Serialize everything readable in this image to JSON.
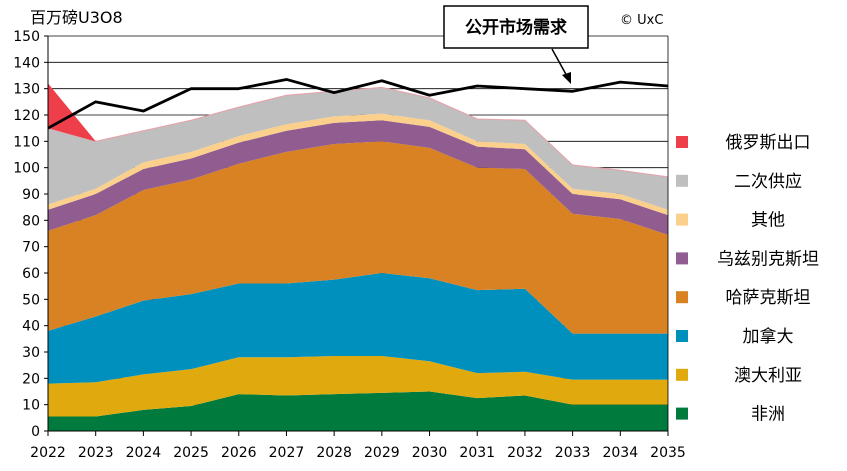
{
  "chart_data": {
    "type": "area",
    "title": "",
    "ylabel": "百万磅U3O8",
    "xlabel": "",
    "copyright": "© UxC",
    "callout": "公开市场需求",
    "ylim": [
      0,
      150
    ],
    "ytick_step": 10,
    "x": [
      2022,
      2023,
      2024,
      2025,
      2026,
      2027,
      2028,
      2029,
      2030,
      2031,
      2032,
      2033,
      2034,
      2035
    ],
    "stack_order": [
      "非洲",
      "澳大利亚",
      "加拿大",
      "哈萨克斯坦",
      "乌兹别克斯坦",
      "其他",
      "二次供应"
    ],
    "series": [
      {
        "name": "非洲",
        "color": "#007a3d",
        "values": [
          5.5,
          5.5,
          8,
          9.5,
          14,
          13.5,
          14,
          14.5,
          15,
          12.5,
          13.5,
          10,
          10,
          10
        ]
      },
      {
        "name": "澳大利亚",
        "color": "#e0aa0f",
        "values": [
          12.5,
          13,
          13.5,
          14,
          14,
          14.5,
          14.5,
          14,
          11.5,
          9.5,
          9,
          9.5,
          9.5,
          9.5
        ]
      },
      {
        "name": "加拿大",
        "color": "#0090be",
        "values": [
          20,
          25,
          28,
          28.5,
          28,
          28,
          29,
          31.5,
          31.5,
          31.5,
          31.5,
          17.5,
          17.5,
          17.5
        ]
      },
      {
        "name": "哈萨克斯坦",
        "color": "#d98224",
        "values": [
          38,
          38.5,
          42,
          43.5,
          45.5,
          50,
          51.5,
          50,
          49.5,
          46.5,
          45.5,
          45.5,
          43.5,
          37.5
        ]
      },
      {
        "name": "乌兹别克斯坦",
        "color": "#915c90",
        "values": [
          8,
          8,
          8,
          8,
          8,
          8,
          8,
          8,
          8,
          8,
          7.5,
          7.5,
          7.5,
          7.5
        ]
      },
      {
        "name": "其他",
        "color": "#fad08c",
        "values": [
          2,
          2,
          2.5,
          2.5,
          2.5,
          2.5,
          2.5,
          2.5,
          2.5,
          2,
          2,
          2,
          2,
          2
        ]
      },
      {
        "name": "二次供应",
        "color": "#bfbfbf",
        "values": [
          29,
          18,
          12,
          12,
          11,
          11,
          9.5,
          10,
          8.5,
          8.5,
          9,
          9,
          9,
          12.5
        ]
      }
    ],
    "russia_exports": {
      "name": "俄罗斯出口",
      "color": "#ee3e4a",
      "values": [
        17,
        0,
        0,
        0,
        0,
        0,
        0,
        0,
        0,
        0,
        0,
        0,
        0,
        0
      ]
    },
    "demand_line": {
      "name": "公开市场需求",
      "color": "#000000",
      "values": [
        115,
        125,
        121.5,
        130,
        130,
        133.5,
        128.5,
        133,
        127.5,
        131,
        130,
        129,
        132.5,
        131
      ]
    },
    "legend": [
      {
        "label": "俄罗斯出口",
        "color": "#ee3e4a"
      },
      {
        "label": "二次供应",
        "color": "#bfbfbf"
      },
      {
        "label": "其他",
        "color": "#fad08c"
      },
      {
        "label": "乌兹别克斯坦",
        "color": "#915c90"
      },
      {
        "label": "哈萨克斯坦",
        "color": "#d98224"
      },
      {
        "label": "加拿大",
        "color": "#0090be"
      },
      {
        "label": "澳大利亚",
        "color": "#e0aa0f"
      },
      {
        "label": "非洲",
        "color": "#007a3d"
      }
    ]
  }
}
